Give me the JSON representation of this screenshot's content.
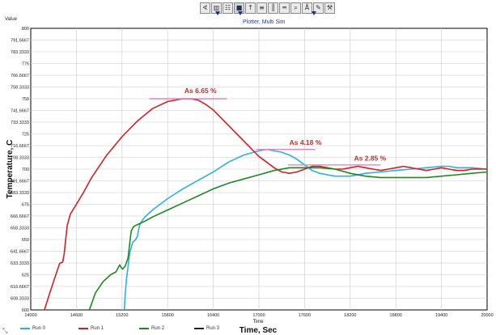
{
  "toolbar": {
    "buttons": [
      "∢",
      "▥",
      "☷",
      "■",
      "↑",
      "≡",
      "║",
      "═",
      "⌕",
      "Å",
      "✎",
      "⚒"
    ],
    "pressed": [
      3
    ]
  },
  "plot_title": "Plotter, Multi Sim",
  "value_label": "Value",
  "chart_data": {
    "type": "line",
    "title": "Plotter, Multi Sim",
    "xlabel": "Time, Sec",
    "xlabel_small": "Time",
    "ylabel": "Temperature, C",
    "xlim": [
      14000,
      20000
    ],
    "ylim": [
      600,
      800
    ],
    "x_ticks": [
      "14000",
      "14600",
      "15200",
      "15800",
      "16400",
      "17000",
      "17600",
      "18200",
      "18800",
      "19400",
      "20000"
    ],
    "y_ticks": [
      "600",
      "608.3333",
      "616.6667",
      "625",
      "633.3333",
      "641.6667",
      "650",
      "658.3333",
      "666.6667",
      "675",
      "683.3333",
      "691.6667",
      "700",
      "708.3333",
      "716.6667",
      "725",
      "733.3333",
      "741.6667",
      "750",
      "758.3333",
      "766.6667",
      "775",
      "783.3333",
      "791.6667",
      "800"
    ],
    "grid": true,
    "legend_position": "bottom",
    "series": [
      {
        "name": "Run 0",
        "color": "#2ab0e8",
        "x": [
          15230,
          15240,
          15260,
          15300,
          15340,
          15380,
          15400,
          15430,
          15450,
          15470,
          15500,
          15600,
          15800,
          16000,
          16200,
          16400,
          16600,
          16800,
          17000,
          17100,
          17200,
          17300,
          17400,
          17500,
          17600,
          17700,
          17800,
          17900,
          18000,
          18100,
          18200,
          18300,
          18400,
          18600,
          18800,
          19000,
          19200,
          19400,
          19500,
          19600,
          19800,
          20000
        ],
        "y": [
          600,
          610,
          622,
          640,
          648,
          650,
          652,
          660,
          662,
          664,
          666,
          671,
          679,
          686,
          692,
          698,
          705,
          710,
          713,
          714,
          713,
          712,
          710,
          707,
          703,
          699,
          697,
          696,
          695,
          695,
          695,
          696,
          697,
          698,
          699,
          700,
          701,
          702,
          702,
          701,
          701,
          700
        ]
      },
      {
        "name": "Run 1",
        "color": "#d42020",
        "x": [
          14180,
          14250,
          14330,
          14380,
          14420,
          14440,
          14460,
          14480,
          14520,
          14600,
          14700,
          14800,
          15000,
          15200,
          15400,
          15600,
          15800,
          16000,
          16100,
          16200,
          16300,
          16400,
          16600,
          16800,
          17000,
          17200,
          17300,
          17400,
          17500,
          17600,
          17700,
          17800,
          17900,
          18000,
          18100,
          18200,
          18300,
          18400,
          18500,
          18600,
          18700,
          18800,
          18900,
          19000,
          19100,
          19200,
          19300,
          19400,
          19500,
          19600,
          19700,
          19800,
          19900,
          20000
        ],
        "y": [
          600,
          612,
          625,
          633,
          634,
          640,
          650,
          660,
          668,
          675,
          684,
          694,
          710,
          723,
          734,
          743,
          748,
          750,
          750,
          749,
          746,
          742,
          731,
          720,
          709,
          701,
          698,
          697,
          698,
          700,
          702,
          702,
          701,
          700,
          700,
          701,
          702,
          701,
          700,
          699,
          700,
          701,
          702,
          701,
          700,
          699,
          700,
          701,
          700,
          699,
          699,
          700,
          700,
          700
        ]
      },
      {
        "name": "Run 2",
        "color": "#1e8a1e",
        "x": [
          14770,
          14850,
          14950,
          15050,
          15120,
          15150,
          15170,
          15190,
          15210,
          15240,
          15280,
          15320,
          15350,
          15380,
          15420,
          15500,
          15600,
          15800,
          16000,
          16200,
          16400,
          16600,
          16800,
          17000,
          17200,
          17400,
          17600,
          17800,
          18000,
          18200,
          18400,
          18600,
          18800,
          19000,
          19200,
          19400,
          19600,
          19800,
          20000
        ],
        "y": [
          600,
          612,
          620,
          625,
          627,
          630,
          632,
          630,
          629,
          631,
          637,
          656,
          659,
          660,
          661,
          663,
          666,
          671,
          676,
          681,
          686,
          690,
          693,
          696,
          699,
          701,
          701,
          701,
          700,
          697,
          695,
          694,
          694,
          694,
          694,
          695,
          696,
          697,
          698
        ]
      },
      {
        "name": "Run 3",
        "color": "#222222",
        "x": [],
        "y": []
      }
    ],
    "annotations": [
      {
        "text": "As 6.65 %",
        "x": 16020,
        "y": 753,
        "line_x": [
          15560,
          16580
        ],
        "line_y": 750
      },
      {
        "text": "As 4.18 %",
        "x": 17400,
        "y": 716,
        "line_x": [
          16960,
          17740
        ],
        "line_y": 714
      },
      {
        "text": "As 2.85 %",
        "x": 18250,
        "y": 705,
        "line_x": [
          17380,
          18600
        ],
        "line_y": 703
      }
    ],
    "annotation_color": "#c03030",
    "annotation_line_color": "#f07fc0"
  }
}
